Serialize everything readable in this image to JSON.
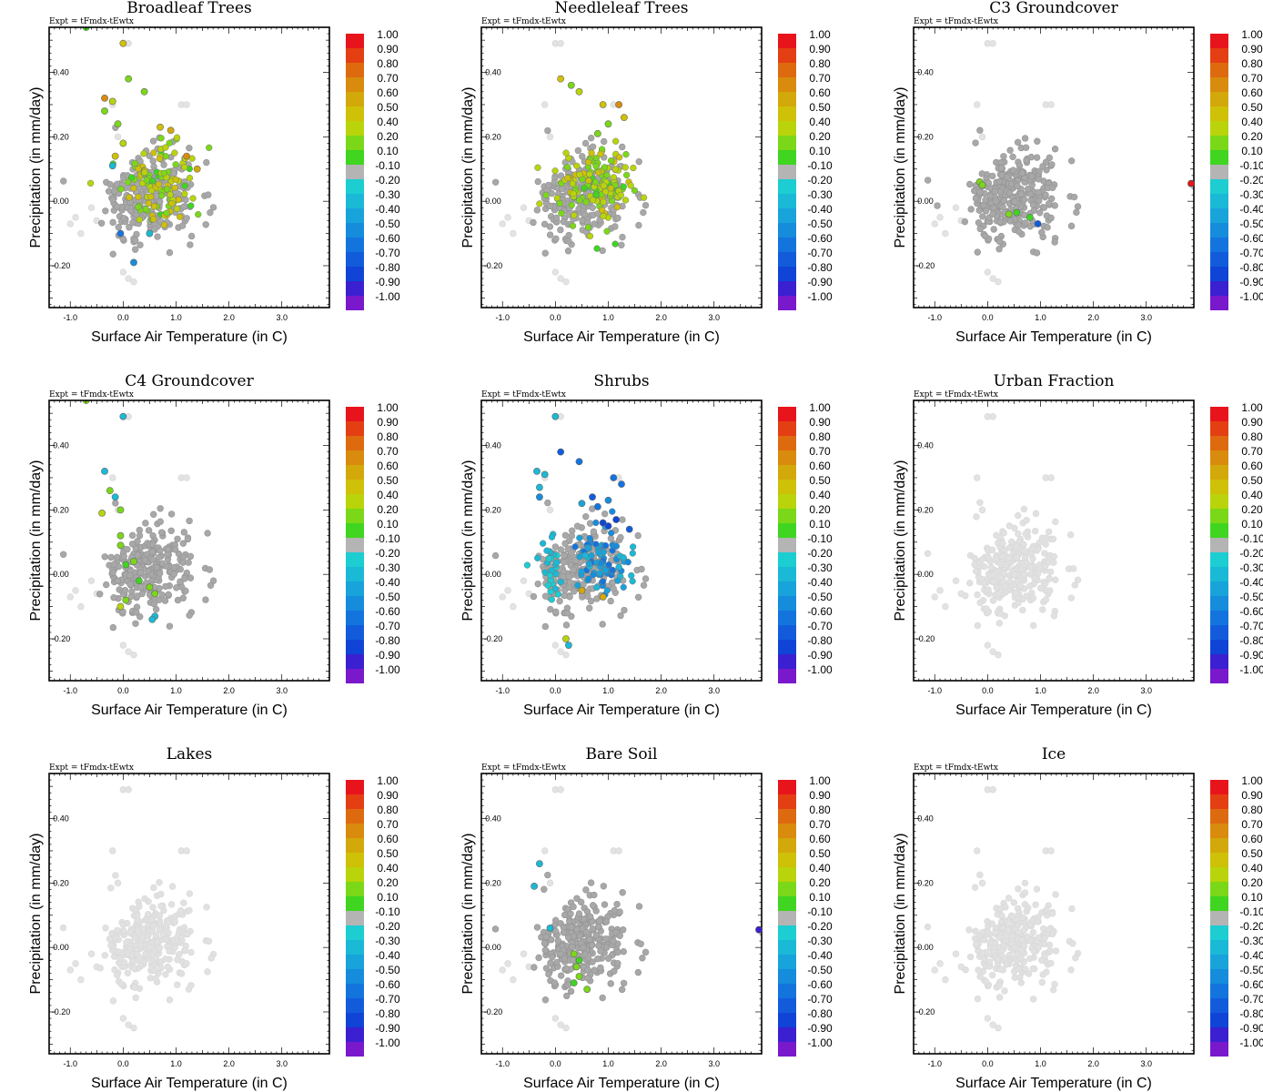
{
  "figure": {
    "experiment_label": "Expt = tFmdx-tEwtx"
  },
  "colorbar": {
    "labels": [
      "1.00",
      "0.90",
      "0.80",
      "0.70",
      "0.60",
      "0.50",
      "0.40",
      "0.20",
      "0.10",
      "-0.10",
      "-0.20",
      "-0.30",
      "-0.40",
      "-0.50",
      "-0.60",
      "-0.70",
      "-0.80",
      "-0.90",
      "-1.00"
    ],
    "colors": [
      "#e8141c",
      "#e43f12",
      "#de6a0f",
      "#d88b0c",
      "#d3a80a",
      "#cfc008",
      "#b9d40a",
      "#7ad818",
      "#3fd520",
      "#b4b4b4",
      "#1ccdd2",
      "#1ab9d6",
      "#18a3da",
      "#168cdc",
      "#1474de",
      "#125cdc",
      "#1044d6",
      "#3a20d0",
      "#7a18cc"
    ]
  },
  "chart_data": [
    {
      "type": "scatter",
      "title": "Broadleaf Trees",
      "xlabel": "Surface Air Temperature (in C)",
      "ylabel": "Precipitation (in mm/day)",
      "xlim": [
        -1.4,
        3.9
      ],
      "ylim": [
        -0.33,
        0.54
      ],
      "xticks": [
        "-1.0",
        "0.0",
        "1.0",
        "2.0",
        "3.0"
      ],
      "yticks": [
        "-0.20",
        "0.00",
        "0.20",
        "0.40"
      ],
      "color_scale": [
        -1.0,
        1.0
      ],
      "colored_points": [
        [
          -0.7,
          0.54,
          0.12
        ],
        [
          0.0,
          0.49,
          0.5
        ],
        [
          0.1,
          0.38,
          0.2
        ],
        [
          -0.35,
          0.32,
          0.7
        ],
        [
          -0.2,
          0.31,
          0.3
        ],
        [
          0.4,
          0.34,
          0.15
        ],
        [
          -0.35,
          0.28,
          0.15
        ],
        [
          -0.1,
          0.24,
          0.2
        ],
        [
          -0.15,
          0.14,
          0.5
        ],
        [
          0.0,
          0.18,
          0.3
        ],
        [
          -0.2,
          0.11,
          -0.3
        ],
        [
          -0.05,
          -0.1,
          -0.6
        ],
        [
          0.2,
          -0.19,
          -0.5
        ],
        [
          0.5,
          -0.1,
          -0.3
        ],
        [
          0.7,
          0.23,
          0.5
        ],
        [
          0.9,
          0.22,
          0.6
        ],
        [
          1.2,
          0.14,
          0.7
        ],
        [
          1.4,
          0.1,
          0.6
        ]
      ],
      "colored_cloud": {
        "x_center": 0.7,
        "y_center": 0.05,
        "x_spread": 0.7,
        "y_spread": 0.12,
        "count": 110,
        "value_range": [
          0.1,
          0.55
        ]
      },
      "grey_cloud": {
        "count": 260
      },
      "outliers": []
    },
    {
      "type": "scatter",
      "title": "Needleleaf Trees",
      "xlabel": "Surface Air Temperature (in C)",
      "ylabel": "Precipitation (in mm/day)",
      "xlim": [
        -1.4,
        3.9
      ],
      "ylim": [
        -0.33,
        0.54
      ],
      "xticks": [
        "-1.0",
        "0.0",
        "1.0",
        "2.0",
        "3.0"
      ],
      "yticks": [
        "-0.20",
        "0.00",
        "0.20",
        "0.40"
      ],
      "color_scale": [
        -1.0,
        1.0
      ],
      "colored_points": [
        [
          0.1,
          0.38,
          0.5
        ],
        [
          0.45,
          0.34,
          0.3
        ],
        [
          0.3,
          0.36,
          0.2
        ],
        [
          0.9,
          0.3,
          0.5
        ],
        [
          1.2,
          0.3,
          0.7
        ],
        [
          1.3,
          0.26,
          0.5
        ],
        [
          1.0,
          0.24,
          0.2
        ],
        [
          0.8,
          0.21,
          0.15
        ]
      ],
      "colored_cloud": {
        "x_center": 0.8,
        "y_center": 0.05,
        "x_spread": 0.75,
        "y_spread": 0.12,
        "count": 150,
        "value_range": [
          0.1,
          0.5
        ]
      },
      "grey_cloud": {
        "count": 260
      },
      "outliers": []
    },
    {
      "type": "scatter",
      "title": "C3 Groundcover",
      "xlabel": "Surface Air Temperature (in C)",
      "ylabel": "Precipitation (in mm/day)",
      "xlim": [
        -1.4,
        3.9
      ],
      "ylim": [
        -0.33,
        0.54
      ],
      "xticks": [
        "-1.0",
        "0.0",
        "1.0",
        "2.0",
        "3.0"
      ],
      "yticks": [
        "-0.20",
        "0.00",
        "0.20",
        "0.40"
      ],
      "color_scale": [
        -1.0,
        1.0
      ],
      "colored_points": [
        [
          -0.15,
          0.06,
          0.15
        ],
        [
          -0.1,
          0.05,
          0.2
        ],
        [
          0.4,
          -0.04,
          0.15
        ],
        [
          0.55,
          -0.035,
          0.12
        ],
        [
          0.8,
          -0.05,
          0.12
        ],
        [
          0.95,
          -0.07,
          -0.7
        ]
      ],
      "colored_cloud": null,
      "grey_cloud": {
        "count": 300
      },
      "outliers": [
        [
          3.85,
          0.055,
          0.95
        ]
      ]
    },
    {
      "type": "scatter",
      "title": "C4 Groundcover",
      "xlabel": "Surface Air Temperature (in C)",
      "ylabel": "Precipitation (in mm/day)",
      "xlim": [
        -1.4,
        3.9
      ],
      "ylim": [
        -0.33,
        0.54
      ],
      "xticks": [
        "-1.0",
        "0.0",
        "1.0",
        "2.0",
        "3.0"
      ],
      "yticks": [
        "-0.20",
        "0.00",
        "0.20",
        "0.40"
      ],
      "color_scale": [
        -1.0,
        1.0
      ],
      "colored_points": [
        [
          -0.7,
          0.54,
          0.15
        ],
        [
          0.0,
          0.49,
          -0.25
        ],
        [
          -0.35,
          0.32,
          -0.3
        ],
        [
          -0.25,
          0.26,
          0.15
        ],
        [
          -0.15,
          0.24,
          -0.25
        ],
        [
          -0.4,
          0.19,
          0.3
        ],
        [
          -0.05,
          0.2,
          0.2
        ],
        [
          -0.05,
          0.12,
          0.15
        ],
        [
          -0.05,
          0.09,
          0.15
        ],
        [
          0.05,
          0.03,
          0.12
        ],
        [
          0.2,
          0.04,
          0.15
        ],
        [
          0.3,
          -0.02,
          0.12
        ],
        [
          0.5,
          -0.04,
          0.15
        ],
        [
          0.6,
          -0.06,
          0.2
        ],
        [
          0.05,
          -0.08,
          0.15
        ],
        [
          -0.05,
          -0.1,
          0.3
        ],
        [
          0.6,
          -0.13,
          -0.3
        ],
        [
          0.55,
          -0.14,
          -0.25
        ]
      ],
      "colored_cloud": null,
      "grey_cloud": {
        "count": 260
      },
      "outliers": []
    },
    {
      "type": "scatter",
      "title": "Shrubs",
      "xlabel": "Surface Air Temperature (in C)",
      "ylabel": "Precipitation (in mm/day)",
      "xlim": [
        -1.4,
        3.9
      ],
      "ylim": [
        -0.33,
        0.54
      ],
      "xticks": [
        "-1.0",
        "0.0",
        "1.0",
        "2.0",
        "3.0"
      ],
      "yticks": [
        "-0.20",
        "0.00",
        "0.20",
        "0.40"
      ],
      "color_scale": [
        -1.0,
        1.0
      ],
      "colored_points": [
        [
          0.0,
          0.49,
          -0.3
        ],
        [
          0.1,
          0.38,
          -0.7
        ],
        [
          -0.35,
          0.32,
          -0.3
        ],
        [
          -0.2,
          0.31,
          -0.3
        ],
        [
          0.45,
          0.35,
          -0.6
        ],
        [
          -0.3,
          0.27,
          -0.25
        ],
        [
          -0.3,
          0.24,
          -0.5
        ],
        [
          0.5,
          0.22,
          -0.4
        ],
        [
          0.7,
          0.24,
          -0.7
        ],
        [
          0.8,
          0.21,
          -0.6
        ],
        [
          1.0,
          0.23,
          -0.5
        ],
        [
          1.1,
          0.3,
          -0.6
        ],
        [
          1.25,
          0.28,
          -0.6
        ],
        [
          1.15,
          0.17,
          -0.8
        ],
        [
          1.4,
          0.14,
          -0.7
        ],
        [
          1.0,
          0.15,
          -0.8
        ],
        [
          0.9,
          0.16,
          -0.8
        ],
        [
          0.5,
          -0.05,
          0.55
        ],
        [
          0.9,
          -0.07,
          0.6
        ],
        [
          0.2,
          -0.2,
          0.3
        ],
        [
          0.25,
          -0.22,
          -0.25
        ]
      ],
      "colored_cloud": {
        "x_center": 0.9,
        "y_center": 0.04,
        "x_spread": 0.55,
        "y_spread": 0.09,
        "count": 90,
        "value_range": [
          -0.6,
          -0.3
        ]
      },
      "colored_cloud_2": {
        "x_center": -0.1,
        "y_center": 0.02,
        "x_spread": 0.3,
        "y_spread": 0.08,
        "count": 30,
        "value_range": [
          -0.3,
          -0.2
        ]
      },
      "grey_cloud": {
        "count": 240
      },
      "outliers": []
    },
    {
      "type": "scatter",
      "title": "Urban Fraction",
      "xlabel": "Surface Air Temperature (in C)",
      "ylabel": "Precipitation (in mm/day)",
      "xlim": [
        -1.4,
        3.9
      ],
      "ylim": [
        -0.33,
        0.54
      ],
      "xticks": [
        "-1.0",
        "0.0",
        "1.0",
        "2.0",
        "3.0"
      ],
      "yticks": [
        "-0.20",
        "0.00",
        "0.20",
        "0.40"
      ],
      "color_scale": [
        -1.0,
        1.0
      ],
      "colored_points": [],
      "colored_cloud": null,
      "grey_cloud": {
        "count": 280
      },
      "outliers": []
    },
    {
      "type": "scatter",
      "title": "Lakes",
      "xlabel": "Surface Air Temperature (in C)",
      "ylabel": "Precipitation (in mm/day)",
      "xlim": [
        -1.4,
        3.9
      ],
      "ylim": [
        -0.33,
        0.54
      ],
      "xticks": [
        "-1.0",
        "0.0",
        "1.0",
        "2.0",
        "3.0"
      ],
      "yticks": [
        "-0.20",
        "0.00",
        "0.20",
        "0.40"
      ],
      "color_scale": [
        -1.0,
        1.0
      ],
      "colored_points": [],
      "colored_cloud": null,
      "grey_cloud": {
        "count": 280
      },
      "outliers": []
    },
    {
      "type": "scatter",
      "title": "Bare Soil",
      "xlabel": "Surface Air Temperature (in C)",
      "ylabel": "Precipitation (in mm/day)",
      "xlim": [
        -1.4,
        3.9
      ],
      "ylim": [
        -0.33,
        0.54
      ],
      "xticks": [
        "-1.0",
        "0.0",
        "1.0",
        "2.0",
        "3.0"
      ],
      "yticks": [
        "-0.20",
        "0.00",
        "0.20",
        "0.40"
      ],
      "color_scale": [
        -1.0,
        1.0
      ],
      "colored_points": [
        [
          -0.3,
          0.26,
          -0.3
        ],
        [
          -0.4,
          0.19,
          -0.3
        ],
        [
          -0.1,
          0.06,
          -0.25
        ],
        [
          0.35,
          -0.02,
          0.2
        ],
        [
          0.45,
          -0.04,
          0.12
        ],
        [
          0.4,
          -0.06,
          0.15
        ],
        [
          0.45,
          -0.09,
          0.2
        ],
        [
          0.6,
          -0.13,
          0.15
        ],
        [
          0.35,
          -0.11,
          0.12
        ]
      ],
      "colored_cloud": null,
      "grey_cloud": {
        "count": 280
      },
      "outliers": [
        [
          3.85,
          0.055,
          -0.9
        ]
      ]
    },
    {
      "type": "scatter",
      "title": "Ice",
      "xlabel": "Surface Air Temperature (in C)",
      "ylabel": "Precipitation (in mm/day)",
      "xlim": [
        -1.4,
        3.9
      ],
      "ylim": [
        -0.33,
        0.54
      ],
      "xticks": [
        "-1.0",
        "0.0",
        "1.0",
        "2.0",
        "3.0"
      ],
      "yticks": [
        "-0.20",
        "0.00",
        "0.20",
        "0.40"
      ],
      "color_scale": [
        -1.0,
        1.0
      ],
      "colored_points": [],
      "colored_cloud": null,
      "grey_cloud": {
        "count": 280
      },
      "outliers": []
    }
  ]
}
